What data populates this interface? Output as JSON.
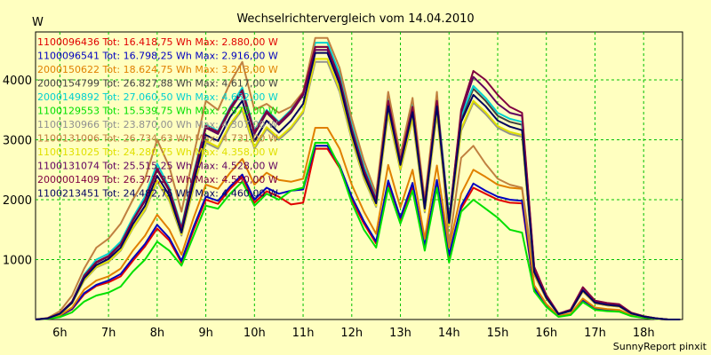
{
  "chart_data": {
    "type": "line",
    "title": "Wechselrichtervergleich vom 14.04.2010",
    "y_unit_label": "W",
    "credit": "SunnyReport pinxit",
    "xlabel": "",
    "ylabel": "",
    "ylim": [
      0,
      4800
    ],
    "xlim": [
      5.5,
      18.8
    ],
    "y_ticks": [
      1000,
      2000,
      3000,
      4000
    ],
    "x_ticks": [
      {
        "value": 6,
        "label": "6h"
      },
      {
        "value": 7,
        "label": "7h"
      },
      {
        "value": 8,
        "label": "8h"
      },
      {
        "value": 9,
        "label": "9h"
      },
      {
        "value": 10,
        "label": "10h"
      },
      {
        "value": 11,
        "label": "11h"
      },
      {
        "value": 12,
        "label": "12h"
      },
      {
        "value": 13,
        "label": "13h"
      },
      {
        "value": 14,
        "label": "14h"
      },
      {
        "value": 15,
        "label": "15h"
      },
      {
        "value": 16,
        "label": "16h"
      },
      {
        "value": 17,
        "label": "17h"
      },
      {
        "value": 18,
        "label": "18h"
      }
    ],
    "grid": true,
    "legend_position": "top-left",
    "x": [
      5.5,
      5.75,
      6,
      6.25,
      6.5,
      6.75,
      7,
      7.25,
      7.5,
      7.75,
      8,
      8.25,
      8.5,
      8.75,
      9,
      9.25,
      9.5,
      9.75,
      10,
      10.25,
      10.5,
      10.75,
      11,
      11.25,
      11.5,
      11.75,
      12,
      12.25,
      12.5,
      12.75,
      13,
      13.25,
      13.5,
      13.75,
      14,
      14.25,
      14.5,
      14.75,
      15,
      15.25,
      15.5,
      15.75,
      16,
      16.25,
      16.5,
      16.75,
      17,
      17.25,
      17.5,
      17.75,
      18,
      18.25,
      18.5,
      18.75
    ],
    "series": [
      {
        "name": "1100096436 Tot: 16.418,75 Wh Max: 2.880,00 W",
        "color": "#e00000",
        "values": [
          0,
          15,
          60,
          170,
          420,
          560,
          620,
          720,
          980,
          1220,
          1520,
          1320,
          950,
          1500,
          2000,
          1930,
          2180,
          2380,
          1950,
          2140,
          2050,
          1920,
          1950,
          2850,
          2850,
          2530,
          2000,
          1600,
          1270,
          2270,
          1650,
          2220,
          1200,
          2290,
          1050,
          1850,
          2200,
          2100,
          2000,
          1950,
          1940,
          500,
          230,
          50,
          80,
          300,
          170,
          150,
          140,
          60,
          30,
          10,
          0,
          0
        ]
      },
      {
        "name": "1100096541 Tot: 16.798,25 Wh Max: 2.916,00 W",
        "color": "#0000c0",
        "values": [
          0,
          15,
          60,
          180,
          440,
          580,
          650,
          760,
          1020,
          1260,
          1580,
          1360,
          980,
          1550,
          2050,
          1980,
          2220,
          2420,
          2000,
          2200,
          2100,
          2150,
          2170,
          2900,
          2900,
          2570,
          2050,
          1640,
          1300,
          2320,
          1700,
          2280,
          1230,
          2330,
          1080,
          1900,
          2270,
          2150,
          2050,
          2000,
          1980,
          520,
          240,
          55,
          90,
          320,
          180,
          160,
          150,
          65,
          32,
          12,
          0,
          0
        ]
      },
      {
        "name": "2000150622 Tot: 18.624,75 Wh Max: 3.213,00 W",
        "color": "#e08000",
        "values": [
          0,
          15,
          70,
          200,
          500,
          650,
          720,
          850,
          1150,
          1400,
          1750,
          1500,
          1080,
          1700,
          2250,
          2180,
          2450,
          2680,
          2250,
          2450,
          2330,
          2300,
          2350,
          3200,
          3200,
          2850,
          2250,
          1800,
          1430,
          2580,
          1870,
          2500,
          1350,
          2570,
          1200,
          2100,
          2500,
          2380,
          2250,
          2200,
          2180,
          570,
          260,
          60,
          100,
          350,
          200,
          175,
          160,
          70,
          35,
          12,
          0,
          0
        ]
      },
      {
        "name": "2000154799 Tot: 26.827,88 Wh Max: 4.617,00 W",
        "color": "#404040",
        "values": [
          0,
          20,
          100,
          300,
          700,
          950,
          1050,
          1250,
          1650,
          1980,
          2500,
          2150,
          1500,
          2400,
          3200,
          3100,
          3500,
          3800,
          3100,
          3450,
          3250,
          3450,
          3750,
          4550,
          4550,
          4050,
          3200,
          2500,
          2000,
          3650,
          2650,
          3550,
          1900,
          3650,
          1650,
          3350,
          3850,
          3650,
          3400,
          3300,
          3250,
          800,
          370,
          90,
          150,
          500,
          290,
          250,
          230,
          100,
          50,
          18,
          0,
          0
        ]
      },
      {
        "name": "2000149892 Tot: 27.060,50 Wh Max: 4.652,00 W",
        "color": "#00d0d0",
        "values": [
          0,
          20,
          100,
          300,
          750,
          1000,
          1100,
          1300,
          1700,
          2050,
          2600,
          2200,
          1550,
          2450,
          3250,
          3150,
          3550,
          3870,
          3150,
          3500,
          3300,
          3500,
          3800,
          4620,
          4620,
          4100,
          3250,
          2550,
          2050,
          3700,
          2700,
          3600,
          1950,
          3700,
          1700,
          3400,
          3900,
          3700,
          3450,
          3350,
          3300,
          820,
          380,
          95,
          155,
          510,
          300,
          260,
          240,
          105,
          52,
          20,
          0,
          0
        ]
      },
      {
        "name": "1100129553 Tot: 15.539,75 Wh Max: 2.973,00 W",
        "color": "#00e000",
        "values": [
          0,
          10,
          40,
          120,
          300,
          400,
          450,
          550,
          800,
          1000,
          1300,
          1150,
          900,
          1400,
          1900,
          1850,
          2100,
          2300,
          1900,
          2100,
          2000,
          2150,
          2200,
          2950,
          2950,
          2550,
          1950,
          1500,
          1200,
          2200,
          1600,
          2150,
          1150,
          2200,
          950,
          1800,
          2000,
          1850,
          1700,
          1500,
          1450,
          470,
          210,
          45,
          75,
          290,
          160,
          140,
          130,
          55,
          28,
          10,
          0,
          0
        ]
      },
      {
        "name": "1100130966 Tot: 23.870,00 Wh Max: 4.307,00 W",
        "color": "#909090",
        "values": [
          0,
          18,
          90,
          270,
          650,
          870,
          960,
          1150,
          1520,
          1820,
          2300,
          1980,
          1400,
          2200,
          2950,
          2850,
          3230,
          3500,
          2850,
          3180,
          3000,
          3180,
          3450,
          4300,
          4300,
          3800,
          3000,
          2350,
          1880,
          3430,
          2490,
          3340,
          1790,
          3430,
          1550,
          3150,
          3620,
          3430,
          3200,
          3100,
          3050,
          760,
          350,
          85,
          140,
          470,
          270,
          235,
          215,
          95,
          47,
          17,
          0,
          0
        ]
      },
      {
        "name": "1100131006 Tot: 26.734,63 Wh Max: 4.731,00 W",
        "color": "#c08040",
        "values": [
          0,
          25,
          140,
          400,
          850,
          1200,
          1350,
          1600,
          2000,
          2350,
          3000,
          2550,
          1800,
          2750,
          3650,
          3500,
          3950,
          4300,
          3500,
          3600,
          3450,
          3550,
          3800,
          4700,
          4700,
          4200,
          3350,
          2650,
          2100,
          3800,
          2750,
          3700,
          2000,
          3800,
          1250,
          2700,
          2900,
          2600,
          2350,
          2250,
          2200,
          750,
          350,
          85,
          140,
          470,
          270,
          235,
          215,
          95,
          47,
          17,
          0,
          0
        ]
      },
      {
        "name": "1100131025 Tot: 24.280,75 Wh Max: 4.358,00 W",
        "color": "#e0e000",
        "values": [
          0,
          18,
          90,
          270,
          660,
          880,
          970,
          1160,
          1530,
          1840,
          2320,
          2000,
          1420,
          2220,
          2980,
          2880,
          3260,
          3530,
          2880,
          3210,
          3030,
          3210,
          3480,
          4350,
          4350,
          3840,
          3030,
          2370,
          1900,
          3460,
          2510,
          3370,
          1810,
          3460,
          1570,
          3180,
          3650,
          3460,
          3230,
          3130,
          3080,
          770,
          355,
          86,
          142,
          475,
          275,
          238,
          218,
          96,
          48,
          17,
          0,
          0
        ]
      },
      {
        "name": "1100131074 Tot: 25.515,25 Wh Max: 4.528,00 W",
        "color": "#600060",
        "values": [
          0,
          20,
          100,
          300,
          720,
          950,
          1050,
          1250,
          1650,
          1980,
          2500,
          2150,
          1500,
          2400,
          3200,
          3100,
          3500,
          3800,
          3100,
          3450,
          3250,
          3450,
          3750,
          4500,
          4500,
          3980,
          3150,
          2480,
          1980,
          3620,
          2620,
          3520,
          1880,
          3620,
          1640,
          3450,
          4050,
          3850,
          3600,
          3450,
          3400,
          860,
          400,
          95,
          160,
          530,
          310,
          270,
          250,
          110,
          55,
          20,
          0,
          0
        ]
      },
      {
        "name": "2000001409 Tot: 26.373,25 Wh Max: 4.550,00 W",
        "color": "#800040",
        "values": [
          0,
          20,
          100,
          300,
          730,
          960,
          1060,
          1260,
          1660,
          2000,
          2520,
          2170,
          1520,
          2420,
          3230,
          3130,
          3530,
          3830,
          3130,
          3480,
          3280,
          3480,
          3780,
          4550,
          4550,
          4020,
          3180,
          2500,
          2000,
          3650,
          2650,
          3550,
          1900,
          3650,
          1650,
          3500,
          4150,
          4000,
          3750,
          3550,
          3450,
          880,
          410,
          98,
          165,
          540,
          315,
          275,
          255,
          112,
          56,
          20,
          0,
          0
        ]
      },
      {
        "name": "1100213451 Tot: 24.482,75 Wh Max: 4.460,00 W",
        "color": "#000060",
        "values": [
          0,
          18,
          95,
          280,
          690,
          910,
          1010,
          1200,
          1590,
          1900,
          2400,
          2070,
          1450,
          2300,
          3080,
          2980,
          3380,
          3650,
          2980,
          3320,
          3120,
          3320,
          3600,
          4450,
          4450,
          3930,
          3100,
          2420,
          1940,
          3560,
          2580,
          3460,
          1850,
          3560,
          1610,
          3300,
          3750,
          3560,
          3320,
          3220,
          3160,
          790,
          365,
          88,
          145,
          485,
          282,
          244,
          224,
          99,
          49,
          18,
          0,
          0
        ]
      }
    ]
  }
}
